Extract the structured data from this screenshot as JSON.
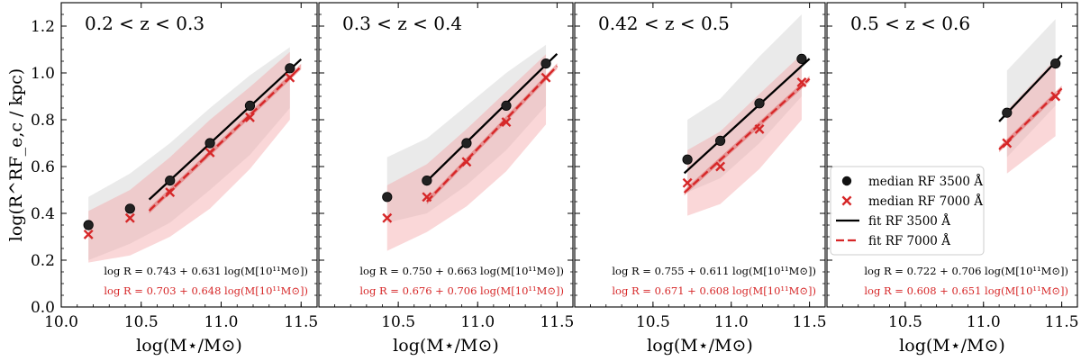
{
  "colors": {
    "fit3500": "#000000",
    "fit7000": "#d62728",
    "band3500": "#d9d9d9",
    "band7000": "#f4a6a8"
  },
  "chart_data": [
    {
      "type": "scatter",
      "title": "0.2 < z < 0.3",
      "xlabel": "log(M⋆/M⊙)",
      "ylabel": "log(R^RF_e,c / kpc)",
      "xlim": [
        10.0,
        11.6
      ],
      "ylim": [
        0.0,
        1.3
      ],
      "xticks": [
        "10.0",
        "10.5",
        "11.0",
        "11.5"
      ],
      "yticks": [
        "0.0",
        "0.2",
        "0.4",
        "0.6",
        "0.8",
        "1.0",
        "1.2"
      ],
      "series": [
        {
          "name": "median RF 3500 Å",
          "x": [
            10.17,
            10.43,
            10.68,
            10.93,
            11.18,
            11.43
          ],
          "y": [
            0.35,
            0.42,
            0.54,
            0.7,
            0.86,
            1.02
          ]
        },
        {
          "name": "median RF 7000 Å",
          "x": [
            10.17,
            10.43,
            10.68,
            10.93,
            11.18,
            11.43
          ],
          "y": [
            0.31,
            0.38,
            0.49,
            0.66,
            0.81,
            0.98
          ]
        }
      ],
      "fits": [
        {
          "name": "fit RF 3500 Å",
          "intercept": 0.743,
          "slope": 0.631,
          "xrange": [
            10.55,
            11.5
          ]
        },
        {
          "name": "fit RF 7000 Å",
          "intercept": 0.703,
          "slope": 0.648,
          "xrange": [
            10.55,
            11.5
          ]
        }
      ],
      "band_x": [
        10.17,
        10.43,
        10.68,
        10.93,
        11.18,
        11.43
      ],
      "band3500_low": [
        0.2,
        0.27,
        0.36,
        0.5,
        0.65,
        0.85
      ],
      "band3500_high": [
        0.47,
        0.57,
        0.7,
        0.85,
        0.99,
        1.11
      ],
      "band7000_low": [
        0.19,
        0.22,
        0.3,
        0.42,
        0.59,
        0.8
      ],
      "band7000_high": [
        0.41,
        0.5,
        0.64,
        0.8,
        0.94,
        1.09
      ],
      "equations": [
        "log R = 0.743 + 0.631 log(M[10¹¹M⊙])",
        "log R = 0.703 + 0.648 log(M[10¹¹M⊙])"
      ]
    },
    {
      "type": "scatter",
      "title": "0.3 < z < 0.4",
      "xlabel": "log(M⋆/M⊙)",
      "ylabel": "",
      "xlim": [
        10.0,
        11.6
      ],
      "ylim": [
        0.0,
        1.3
      ],
      "xticks": [
        "10.0",
        "10.5",
        "11.0",
        "11.5"
      ],
      "yticks": [],
      "series": [
        {
          "name": "median RF 3500 Å",
          "x": [
            10.43,
            10.68,
            10.93,
            11.18,
            11.43
          ],
          "y": [
            0.47,
            0.54,
            0.7,
            0.86,
            1.04
          ]
        },
        {
          "name": "median RF 7000 Å",
          "x": [
            10.43,
            10.68,
            10.93,
            11.18,
            11.43
          ],
          "y": [
            0.38,
            0.47,
            0.62,
            0.79,
            0.98
          ]
        }
      ],
      "fits": [
        {
          "name": "fit RF 3500 Å",
          "intercept": 0.75,
          "slope": 0.663,
          "xrange": [
            10.68,
            11.5
          ]
        },
        {
          "name": "fit RF 7000 Å",
          "intercept": 0.676,
          "slope": 0.706,
          "xrange": [
            10.68,
            11.5
          ]
        }
      ],
      "band_x": [
        10.43,
        10.68,
        10.93,
        11.18,
        11.43
      ],
      "band3500_low": [
        0.36,
        0.4,
        0.52,
        0.67,
        0.86
      ],
      "band3500_high": [
        0.64,
        0.72,
        0.86,
        1.0,
        1.12
      ],
      "band7000_low": [
        0.24,
        0.32,
        0.43,
        0.58,
        0.78
      ],
      "band7000_high": [
        0.52,
        0.61,
        0.76,
        0.92,
        1.08
      ],
      "equations": [
        "log R = 0.750 + 0.663 log(M[10¹¹M⊙])",
        "log R = 0.676 + 0.706 log(M[10¹¹M⊙])"
      ]
    },
    {
      "type": "scatter",
      "title": "0.42 < z < 0.5",
      "xlabel": "log(M⋆/M⊙)",
      "ylabel": "",
      "xlim": [
        10.0,
        11.6
      ],
      "ylim": [
        0.0,
        1.3
      ],
      "xticks": [
        "10.0",
        "10.5",
        "11.0",
        "11.5"
      ],
      "yticks": [],
      "series": [
        {
          "name": "median RF 3500 Å",
          "x": [
            10.72,
            10.93,
            11.18,
            11.45
          ],
          "y": [
            0.63,
            0.71,
            0.87,
            1.06
          ]
        },
        {
          "name": "median RF 7000 Å",
          "x": [
            10.72,
            10.93,
            11.18,
            11.45
          ],
          "y": [
            0.53,
            0.6,
            0.76,
            0.96
          ]
        }
      ],
      "fits": [
        {
          "name": "fit RF 3500 Å",
          "intercept": 0.755,
          "slope": 0.611,
          "xrange": [
            10.7,
            11.5
          ]
        },
        {
          "name": "fit RF 7000 Å",
          "intercept": 0.671,
          "slope": 0.608,
          "xrange": [
            10.7,
            11.5
          ]
        }
      ],
      "band_x": [
        10.72,
        10.93,
        11.18,
        11.45
      ],
      "band3500_low": [
        0.49,
        0.55,
        0.7,
        0.9
      ],
      "band3500_high": [
        0.8,
        0.89,
        1.07,
        1.25
      ],
      "band7000_low": [
        0.39,
        0.44,
        0.59,
        0.8
      ],
      "band7000_high": [
        0.67,
        0.75,
        0.91,
        1.08
      ],
      "equations": [
        "log R = 0.755 + 0.611 log(M[10¹¹M⊙])",
        "log R = 0.671 + 0.608 log(M[10¹¹M⊙])"
      ]
    },
    {
      "type": "scatter",
      "title": "0.5 < z < 0.6",
      "xlabel": "log(M⋆/M⊙)",
      "ylabel": "",
      "xlim": [
        10.0,
        11.6
      ],
      "ylim": [
        0.0,
        1.3
      ],
      "xticks": [
        "10.0",
        "10.5",
        "11.0",
        "11.5"
      ],
      "yticks": [],
      "series": [
        {
          "name": "median RF 3500 Å",
          "x": [
            11.15,
            11.46
          ],
          "y": [
            0.83,
            1.04
          ]
        },
        {
          "name": "median RF 7000 Å",
          "x": [
            11.15,
            11.46
          ],
          "y": [
            0.7,
            0.9
          ]
        }
      ],
      "fits": [
        {
          "name": "fit RF 3500 Å",
          "intercept": 0.722,
          "slope": 0.706,
          "xrange": [
            11.1,
            11.5
          ]
        },
        {
          "name": "fit RF 7000 Å",
          "intercept": 0.608,
          "slope": 0.651,
          "xrange": [
            11.1,
            11.5
          ]
        }
      ],
      "band_x": [
        11.15,
        11.46
      ],
      "band3500_low": [
        0.64,
        0.86
      ],
      "band3500_high": [
        1.01,
        1.23
      ],
      "band7000_low": [
        0.57,
        0.73
      ],
      "band7000_high": [
        0.84,
        1.06
      ],
      "equations": [
        "log R = 0.722 + 0.706 log(M[10¹¹M⊙])",
        "log R = 0.608 + 0.651 log(M[10¹¹M⊙])"
      ],
      "legend": {
        "placement": "center-left",
        "entries": [
          "median RF 3500 Å",
          "median RF 7000 Å",
          "fit RF 3500 Å",
          "fit RF 7000 Å"
        ]
      }
    }
  ]
}
